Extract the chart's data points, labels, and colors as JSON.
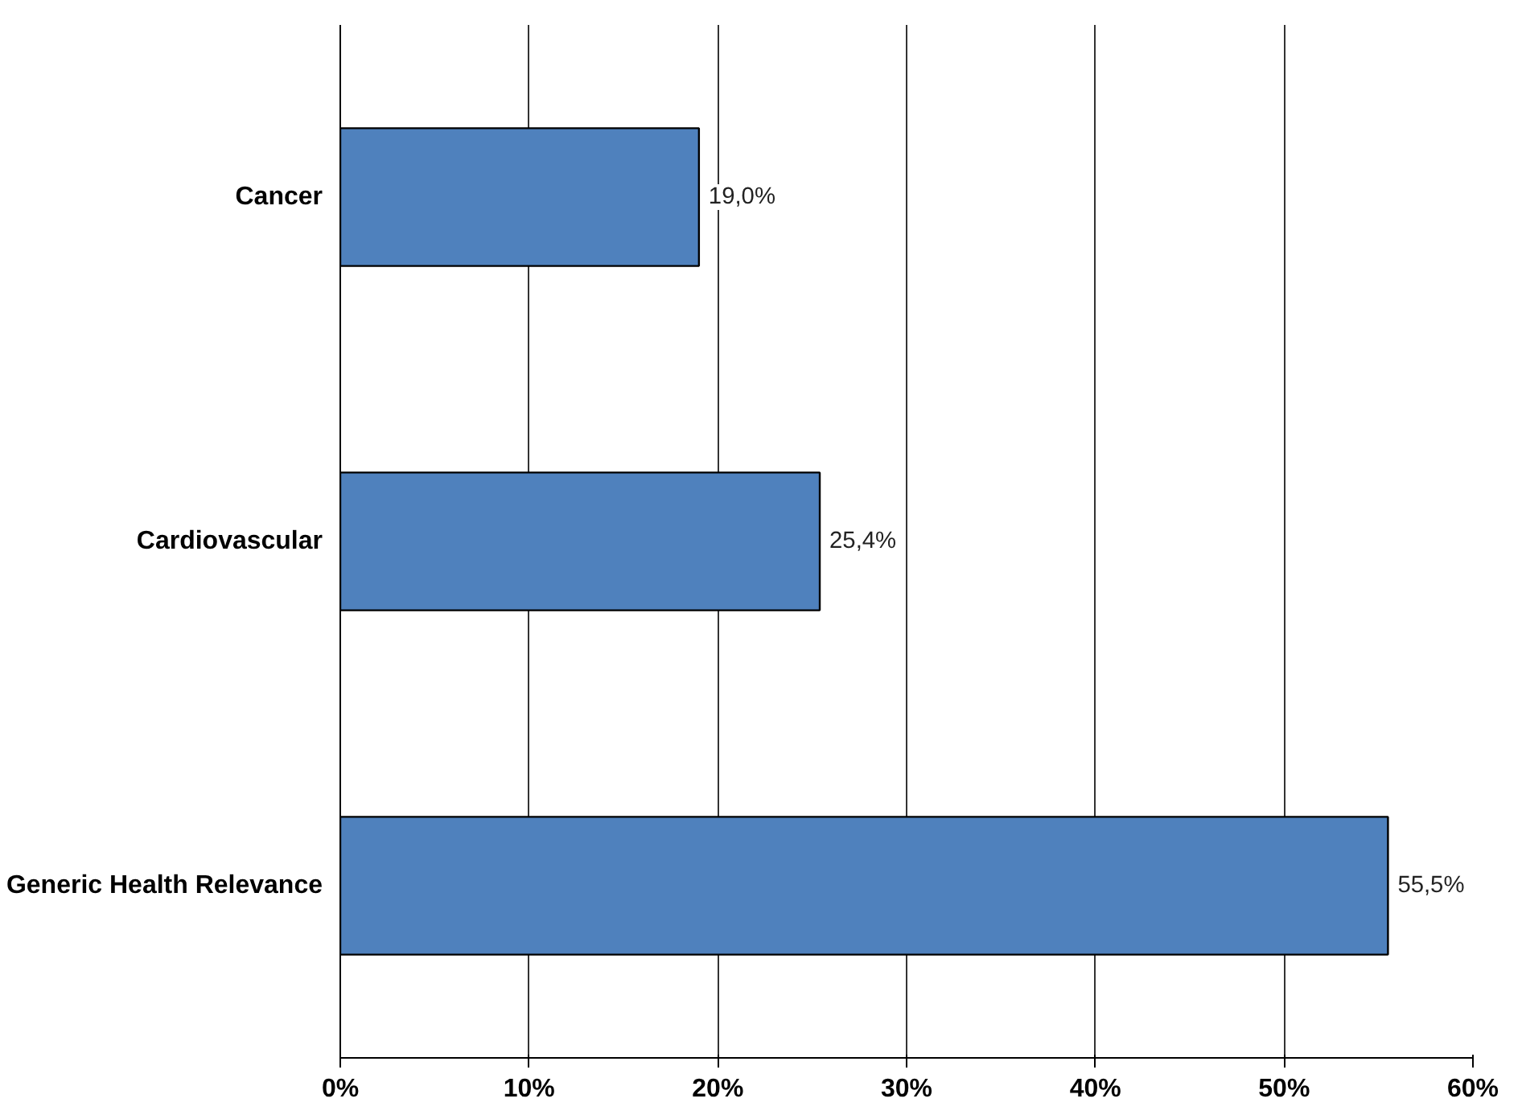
{
  "chart_data": {
    "type": "bar",
    "orientation": "horizontal",
    "categories": [
      "Cancer",
      "Cardiovascular",
      "Generic Health Relevance"
    ],
    "values": [
      19.0,
      25.4,
      55.5
    ],
    "value_labels": [
      "19,0%",
      "25,4%",
      "55,5%"
    ],
    "color": "#4f81bd",
    "xlim": [
      0,
      60
    ],
    "xticks": [
      {
        "value": 0,
        "label": "0%"
      },
      {
        "value": 10,
        "label": "10%"
      },
      {
        "value": 20,
        "label": "20%"
      },
      {
        "value": 30,
        "label": "30%"
      },
      {
        "value": 40,
        "label": "40%"
      },
      {
        "value": 50,
        "label": "50%"
      },
      {
        "value": 60,
        "label": "60%"
      }
    ],
    "grid": "x"
  }
}
